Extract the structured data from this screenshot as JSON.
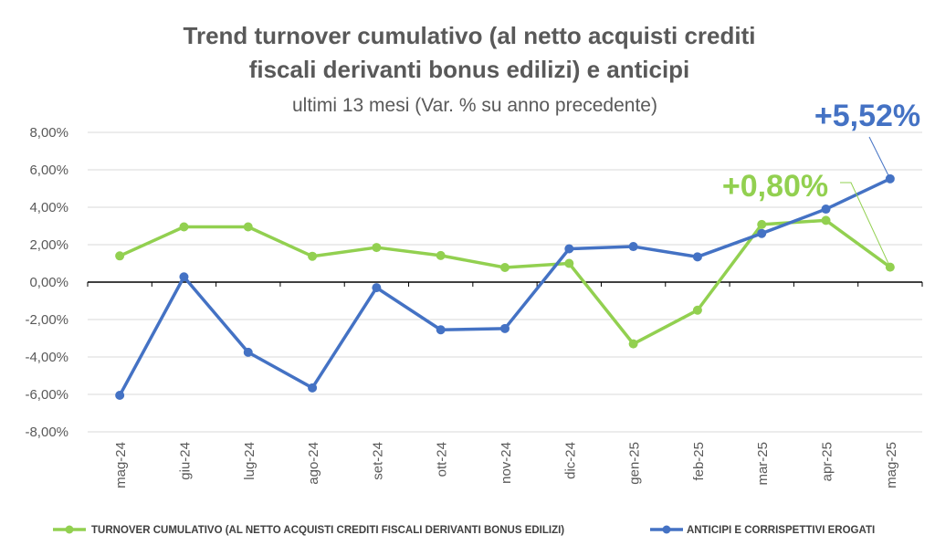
{
  "chart_data": {
    "type": "line",
    "title_line1": "Trend turnover cumulativo (al netto acquisti crediti",
    "title_line2": "fiscali derivanti bonus edilizi) e anticipi",
    "subtitle": "ultimi 13 mesi (Var. % su anno precedente)",
    "categories": [
      "mag-24",
      "giu-24",
      "lug-24",
      "ago-24",
      "set-24",
      "ott-24",
      "nov-24",
      "dic-24",
      "gen-25",
      "feb-25",
      "mar-25",
      "apr-25",
      "mag-25"
    ],
    "ylim": [
      -8,
      8
    ],
    "yticks": [
      "8,00%",
      "6,00%",
      "4,00%",
      "2,00%",
      "0,00%",
      "-2,00%",
      "-4,00%",
      "-6,00%",
      "-8,00%"
    ],
    "grid": true,
    "legend_position": "bottom",
    "series": [
      {
        "name": "TURNOVER CUMULATIVO (AL NETTO ACQUISTI CREDITI FISCALI DERIVANTI BONUS EDILIZI)",
        "color": "#92d050",
        "values": [
          1.4,
          2.95,
          2.95,
          1.38,
          1.85,
          1.42,
          0.78,
          1.0,
          -3.3,
          -1.5,
          3.08,
          3.3,
          0.8
        ]
      },
      {
        "name": "ANTICIPI E CORRISPETTIVI EROGATI",
        "color": "#4472c4",
        "values": [
          -6.05,
          0.28,
          -3.75,
          -5.65,
          -0.3,
          -2.55,
          -2.48,
          1.78,
          1.9,
          1.35,
          2.6,
          3.9,
          5.52
        ]
      }
    ],
    "annotations": [
      {
        "text": "+0,80%",
        "series": 0,
        "color": "#92d050"
      },
      {
        "text": "+5,52%",
        "series": 1,
        "color": "#4472c4"
      }
    ]
  }
}
